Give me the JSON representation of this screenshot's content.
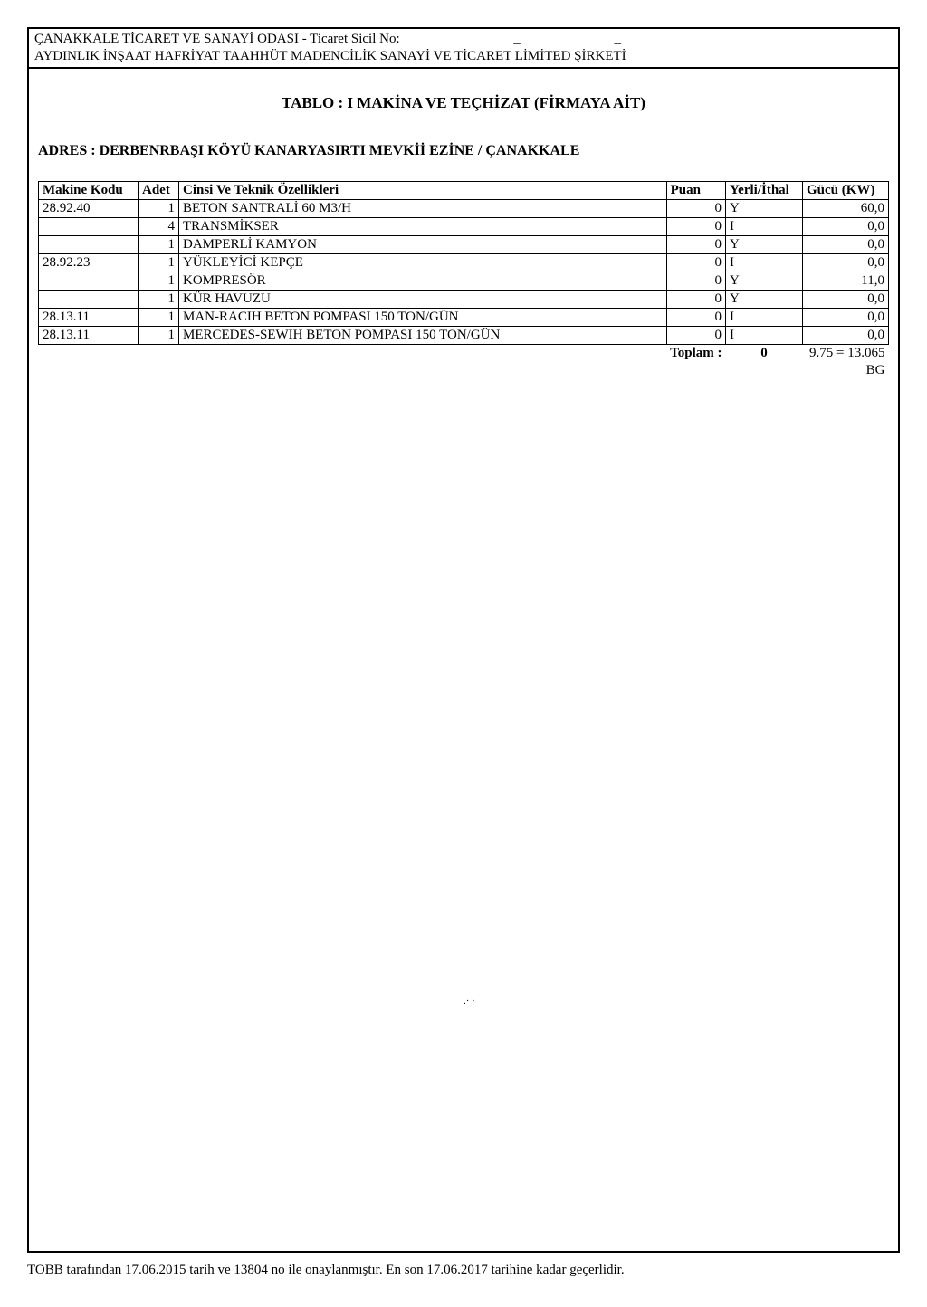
{
  "header": {
    "chamber_line": "ÇANAKKALE TİCARET VE SANAYİ ODASI - Ticaret Sicil No:",
    "company_line": "AYDINLIK İNŞAAT HAFRİYAT TAAHHÜT MADENCİLİK SANAYİ VE TİCARET LİMİTED ŞİRKETİ",
    "dash": "_"
  },
  "title": "TABLO : I MAKİNA VE TEÇHİZAT (FİRMAYA AİT)",
  "address_label": "ADRES : DERBENRBAŞI KÖYÜ KANARYASIRTI MEVKİİ  EZİNE / ÇANAKKALE",
  "columns": {
    "kod": "Makine Kodu",
    "adet": "Adet",
    "cinsi": "Cinsi Ve Teknik Özellikleri",
    "puan": "Puan",
    "yerli": "Yerli/İthal",
    "gucu": "Gücü (KW)"
  },
  "rows": [
    {
      "kod": "28.92.40",
      "adet": "1",
      "cinsi": "BETON SANTRALİ 60 M3/H",
      "puan": "0",
      "yi": "Y",
      "gucu": "60,0"
    },
    {
      "kod": "",
      "adet": "4",
      "cinsi": "TRANSMİKSER",
      "puan": "0",
      "yi": "I",
      "gucu": "0,0"
    },
    {
      "kod": "",
      "adet": "1",
      "cinsi": "DAMPERLİ KAMYON",
      "puan": "0",
      "yi": "Y",
      "gucu": "0,0"
    },
    {
      "kod": "28.92.23",
      "adet": "1",
      "cinsi": "YÜKLEYİCİ KEPÇE",
      "puan": "0",
      "yi": "I",
      "gucu": "0,0"
    },
    {
      "kod": "",
      "adet": "1",
      "cinsi": "KOMPRESÖR",
      "puan": "0",
      "yi": "Y",
      "gucu": "11,0"
    },
    {
      "kod": "",
      "adet": "1",
      "cinsi": "KÜR HAVUZU",
      "puan": "0",
      "yi": "Y",
      "gucu": "0,0"
    },
    {
      "kod": "28.13.11",
      "adet": "1",
      "cinsi": "MAN-RACIH BETON POMPASI 150 TON/GÜN",
      "puan": "0",
      "yi": "I",
      "gucu": "0,0"
    },
    {
      "kod": "28.13.11",
      "adet": "1",
      "cinsi": "MERCEDES-SEWIH BETON POMPASI 150 TON/GÜN",
      "puan": "0",
      "yi": "I",
      "gucu": "0,0"
    }
  ],
  "totals": {
    "label": "Toplam :",
    "puan": "0",
    "gucu": "9.75 = 13.065",
    "bg": "BG"
  },
  "footer": "TOBB tarafından 17.06.2015 tarih ve 13804 no ile onaylanmıştır. En son 17.06.2017 tarihine kadar geçerlidir.",
  "tiny_mark": ".· ·"
}
